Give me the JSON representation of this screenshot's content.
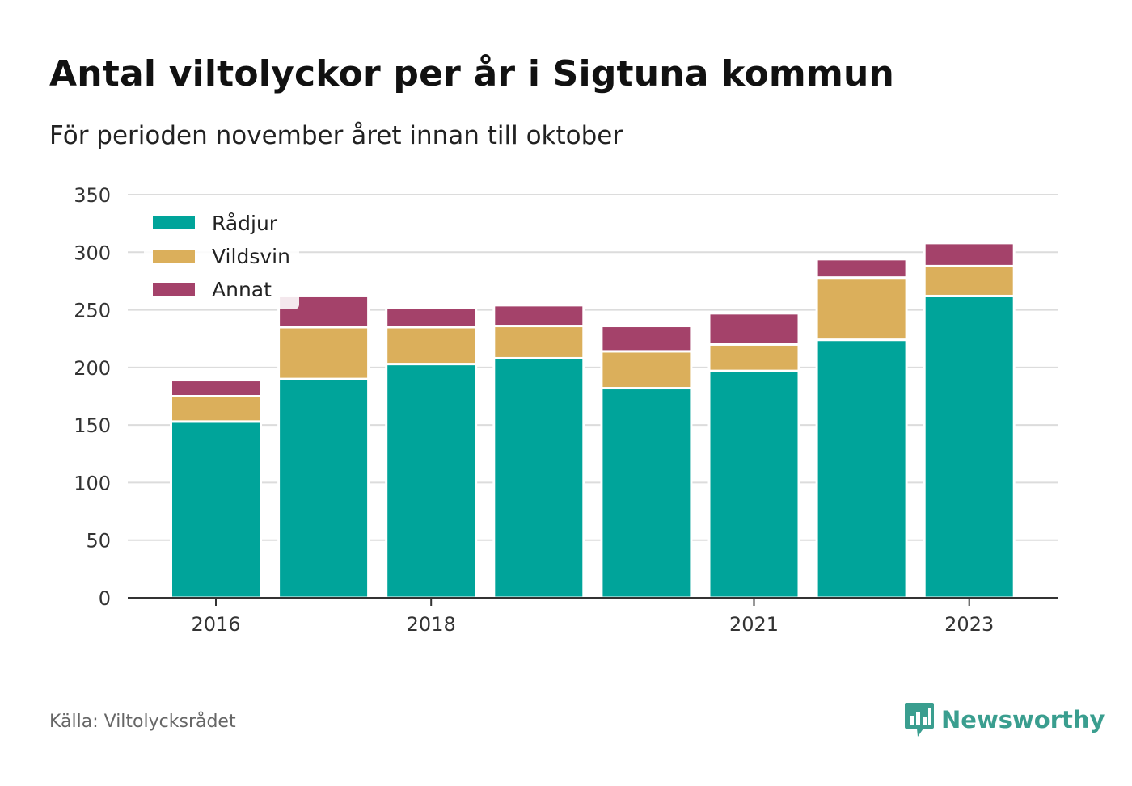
{
  "title": "Antal viltolyckor per år i Sigtuna kommun",
  "subtitle": "För perioden november året innan till oktober",
  "source": "Källa: Viltolycksrådet",
  "brand": {
    "name": "Newsworthy",
    "icon": "newsworthy-logo-icon",
    "color": "#3a9e8f"
  },
  "chart_data": {
    "type": "bar",
    "stacked": true,
    "categories": [
      "2016",
      "2017",
      "2018",
      "2019",
      "2020",
      "2021",
      "2022",
      "2023"
    ],
    "x_tick_labels": [
      "2016",
      "2018",
      "2021",
      "2023"
    ],
    "series": [
      {
        "name": "Rådjur",
        "color": "#00a49a",
        "values": [
          153,
          190,
          203,
          208,
          182,
          197,
          224,
          262
        ]
      },
      {
        "name": "Vildsvin",
        "color": "#dbaf5b",
        "values": [
          22,
          45,
          32,
          28,
          32,
          23,
          54,
          26
        ]
      },
      {
        "name": "Annat",
        "color": "#a4426a",
        "values": [
          14,
          27,
          17,
          18,
          22,
          27,
          16,
          20
        ]
      }
    ],
    "ylim": [
      0,
      350
    ],
    "yticks": [
      0,
      50,
      100,
      150,
      200,
      250,
      300,
      350
    ],
    "grid": true,
    "legend": "top-left",
    "xlabel": "",
    "ylabel": ""
  }
}
